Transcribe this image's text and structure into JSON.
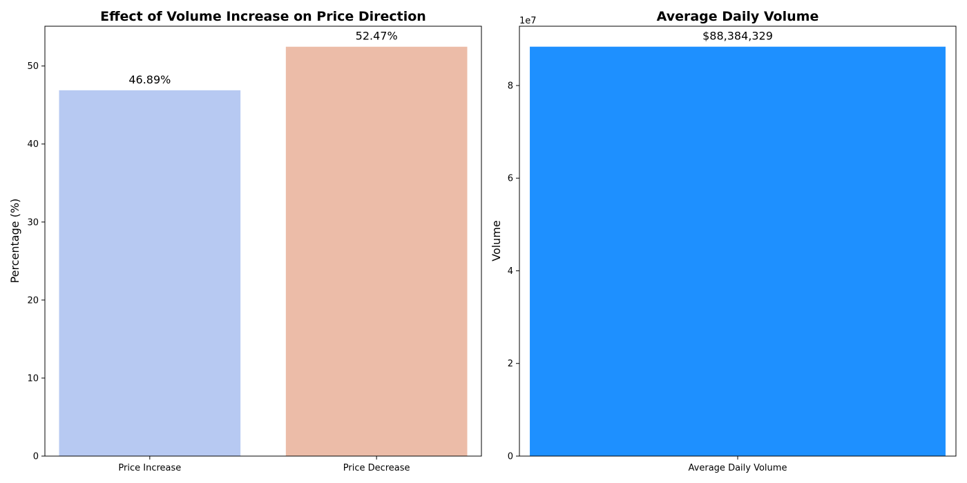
{
  "chart_data": [
    {
      "type": "bar",
      "title": "Effect of Volume Increase on Price Direction",
      "xlabel": "",
      "ylabel": "Percentage (%)",
      "categories": [
        "Price Increase",
        "Price Decrease"
      ],
      "values": [
        46.89,
        52.47
      ],
      "value_labels": [
        "46.89%",
        "52.47%"
      ],
      "colors": [
        "#b7c9f2",
        "#ecbca8"
      ],
      "ylim": [
        0,
        55.1
      ],
      "yticks": [
        0,
        10,
        20,
        30,
        40,
        50
      ],
      "ytick_labels": [
        "0",
        "10",
        "20",
        "30",
        "40",
        "50"
      ],
      "grid": false
    },
    {
      "type": "bar",
      "title": "Average Daily Volume",
      "xlabel": "",
      "ylabel": "Volume",
      "categories": [
        "Average Daily Volume"
      ],
      "values": [
        88384329
      ],
      "value_labels": [
        "$88,384,329"
      ],
      "colors": [
        "#1e90ff"
      ],
      "ylim": [
        0,
        92803545
      ],
      "yticks": [
        0,
        20000000,
        40000000,
        60000000,
        80000000
      ],
      "ytick_labels": [
        "0",
        "2",
        "4",
        "6",
        "8"
      ],
      "axis_offset_label": "1e7",
      "grid": false
    }
  ]
}
